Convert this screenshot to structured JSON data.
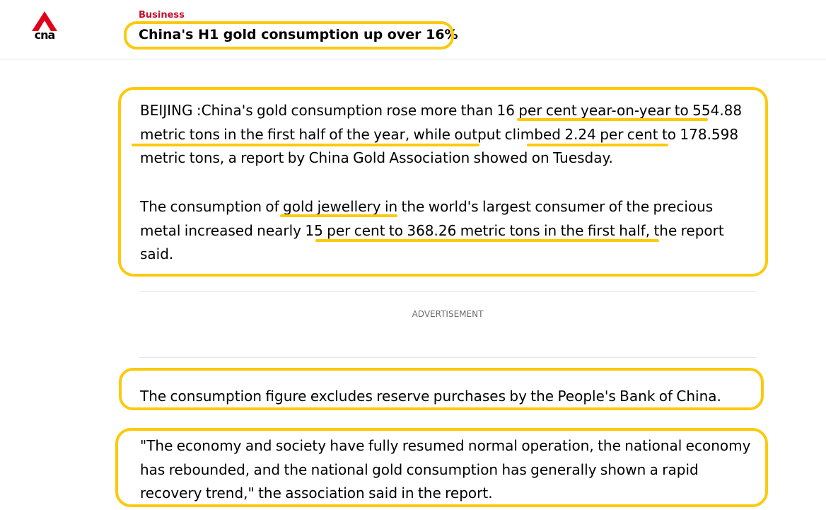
{
  "header": {
    "logo_text": "cna",
    "category": "Business",
    "headline": "China's H1 gold consumption up over 16%"
  },
  "article": {
    "paragraphs": [
      "BEIJING :China's gold consumption rose more than 16 per cent year-on-year to 554.88 metric tons in the first half of the year, while output climbed 2.24 per cent to 178.598 metric tons, a report by China Gold Association showed on Tuesday.",
      "The consumption of gold jewellery in the world's largest consumer of the precious metal increased nearly 15 per cent to 368.26 metric tons in the first half, the report said.",
      "The consumption figure excludes reserve purchases by the People's Bank of China.",
      "\"The economy and society have fully resumed normal operation, the national economy has rebounded, and the national gold consumption has generally shown a rapid recovery trend,\" the association said in the report."
    ]
  },
  "advertisement_label": "ADVERTISEMENT",
  "colors": {
    "brand_red": "#c8102e",
    "highlight_yellow": "#fcc90c",
    "divider": "#e4e4e4"
  }
}
